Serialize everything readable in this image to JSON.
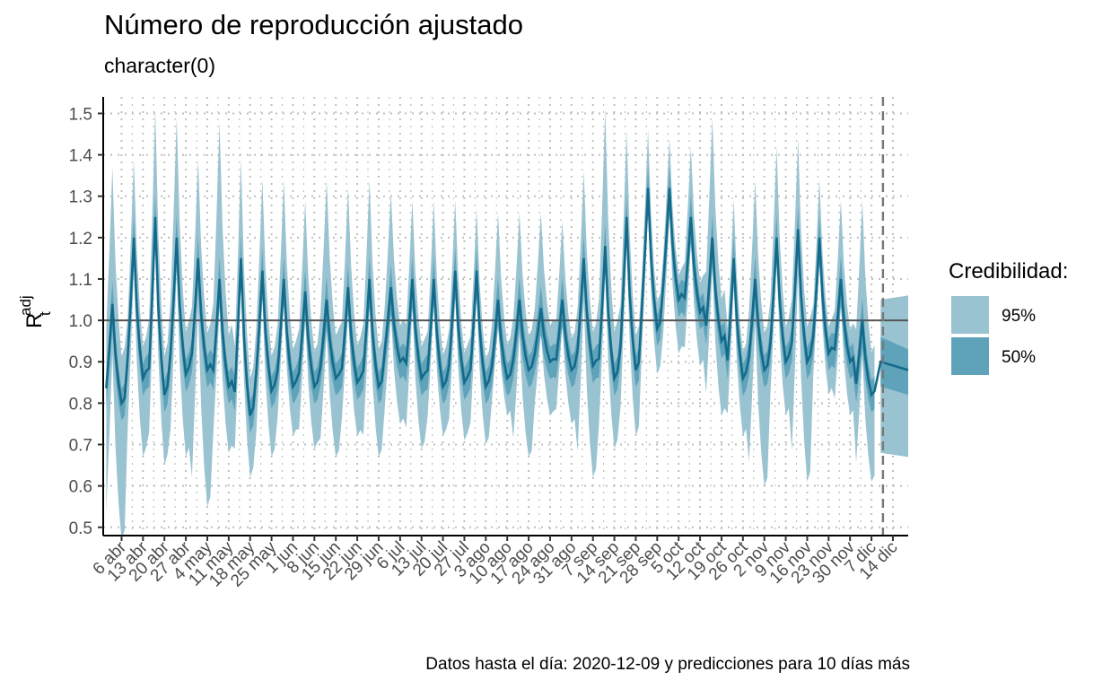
{
  "title": "Número de reproducción ajustado",
  "subtitle": "character(0)",
  "caption": "Datos hasta el día: 2020-12-09 y predicciones para 10 días más",
  "colors": {
    "band95": "#9ac3d1",
    "band50": "#5fa3ba",
    "line": "#136a8a",
    "refline": "#555555",
    "cutoff": "#777777",
    "grid": "#bfbfbf"
  },
  "chart_data": {
    "type": "area",
    "title": "Número de reproducción ajustado",
    "subtitle": "character(0)",
    "xlabel": "",
    "ylabel": {
      "base": "R",
      "subscript": "t",
      "superscript": "adj"
    },
    "ylim": [
      0.48,
      1.54
    ],
    "yticks": [
      "0.5",
      "0.6",
      "0.7",
      "0.8",
      "0.9",
      "1.0",
      "1.1",
      "1.2",
      "1.3",
      "1.4",
      "1.5"
    ],
    "yticks_values": [
      0.5,
      0.6,
      0.7,
      0.8,
      0.9,
      1.0,
      1.1,
      1.2,
      1.3,
      1.4,
      1.5
    ],
    "xlim": [
      "2020-03-31",
      "2020-12-19"
    ],
    "xticks": [
      "6 abr",
      "13 abr",
      "20 abr",
      "27 abr",
      "4 may",
      "11 may",
      "18 may",
      "25 may",
      "1 jun",
      "8 jun",
      "15 jun",
      "22 jun",
      "29 jun",
      "6 jul",
      "13 jul",
      "20 jul",
      "27 jul",
      "3 ago",
      "10 ago",
      "17 ago",
      "24 ago",
      "31 ago",
      "7 sep",
      "14 sep",
      "21 sep",
      "28 sep",
      "5 oct",
      "12 oct",
      "19 oct",
      "26 oct",
      "2 nov",
      "9 nov",
      "16 nov",
      "23 nov",
      "30 nov",
      "7 dic",
      "14 dic"
    ],
    "xticks_dates": [
      "2020-04-06",
      "2020-04-13",
      "2020-04-20",
      "2020-04-27",
      "2020-05-04",
      "2020-05-11",
      "2020-05-18",
      "2020-05-25",
      "2020-06-01",
      "2020-06-08",
      "2020-06-15",
      "2020-06-22",
      "2020-06-29",
      "2020-07-06",
      "2020-07-13",
      "2020-07-20",
      "2020-07-27",
      "2020-08-03",
      "2020-08-10",
      "2020-08-17",
      "2020-08-24",
      "2020-08-31",
      "2020-09-07",
      "2020-09-14",
      "2020-09-21",
      "2020-09-28",
      "2020-10-05",
      "2020-10-12",
      "2020-10-19",
      "2020-10-26",
      "2020-11-02",
      "2020-11-09",
      "2020-11-16",
      "2020-11-23",
      "2020-11-30",
      "2020-12-07",
      "2020-12-14"
    ],
    "reference_line": 1.0,
    "cutoff_date": "2020-12-09",
    "grid": true,
    "legend": {
      "title": "Credibilidad:",
      "position": "right",
      "entries": [
        "95%",
        "50%"
      ]
    },
    "series_weekly_peaks": {
      "week_start": [
        "2020-04-01",
        "2020-04-08",
        "2020-04-15",
        "2020-04-22",
        "2020-04-29",
        "2020-05-06",
        "2020-05-13",
        "2020-05-20",
        "2020-05-27",
        "2020-06-03",
        "2020-06-10",
        "2020-06-17",
        "2020-06-24",
        "2020-07-01",
        "2020-07-08",
        "2020-07-15",
        "2020-07-22",
        "2020-07-29",
        "2020-08-05",
        "2020-08-12",
        "2020-08-19",
        "2020-08-26",
        "2020-09-02",
        "2020-09-09",
        "2020-09-16",
        "2020-09-23",
        "2020-09-30",
        "2020-10-07",
        "2020-10-14",
        "2020-10-21",
        "2020-10-28",
        "2020-11-04",
        "2020-11-11",
        "2020-11-18",
        "2020-11-25",
        "2020-12-02"
      ],
      "median_peak": [
        1.04,
        1.2,
        1.25,
        1.2,
        1.15,
        1.1,
        1.15,
        1.12,
        1.1,
        1.07,
        1.05,
        1.08,
        1.1,
        1.08,
        1.1,
        1.1,
        1.12,
        1.12,
        1.05,
        1.05,
        1.03,
        1.05,
        1.15,
        1.18,
        1.25,
        1.32,
        1.32,
        1.25,
        1.2,
        1.15,
        1.1,
        1.2,
        1.22,
        1.2,
        1.1,
        1.0
      ],
      "median_trough": [
        0.8,
        0.86,
        0.82,
        0.87,
        0.88,
        0.84,
        0.77,
        0.83,
        0.84,
        0.84,
        0.86,
        0.85,
        0.84,
        0.9,
        0.86,
        0.84,
        0.85,
        0.84,
        0.86,
        0.88,
        0.9,
        0.88,
        0.89,
        0.86,
        0.88,
        0.98,
        1.05,
        1.02,
        0.95,
        0.86,
        0.88,
        0.9,
        0.9,
        0.92,
        0.9,
        0.82
      ],
      "upper95_peak": [
        1.33,
        1.35,
        1.47,
        1.45,
        1.35,
        1.44,
        1.35,
        1.3,
        1.3,
        1.25,
        1.3,
        1.28,
        1.3,
        1.27,
        1.25,
        1.25,
        1.25,
        1.23,
        1.22,
        1.22,
        1.22,
        1.2,
        1.32,
        1.47,
        1.42,
        1.42,
        1.4,
        1.38,
        1.45,
        1.25,
        1.3,
        1.38,
        1.4,
        1.3,
        1.25,
        1.25
      ],
      "lower95_trough": [
        0.5,
        0.7,
        0.68,
        0.7,
        0.58,
        0.71,
        0.65,
        0.7,
        0.75,
        0.72,
        0.7,
        0.75,
        0.7,
        0.78,
        0.72,
        0.75,
        0.74,
        0.73,
        0.8,
        0.7,
        0.8,
        0.78,
        0.65,
        0.72,
        0.75,
        0.9,
        0.95,
        0.92,
        0.8,
        0.75,
        0.63,
        0.8,
        0.64,
        0.85,
        0.8,
        0.64
      ]
    },
    "forecast": {
      "x": [
        "2020-12-10",
        "2020-12-19"
      ],
      "median": [
        0.9,
        0.88
      ],
      "lower50": [
        0.84,
        0.82
      ],
      "upper50": [
        0.96,
        0.93
      ],
      "lower95": [
        0.68,
        0.67
      ],
      "upper95": [
        1.05,
        1.06
      ]
    }
  }
}
